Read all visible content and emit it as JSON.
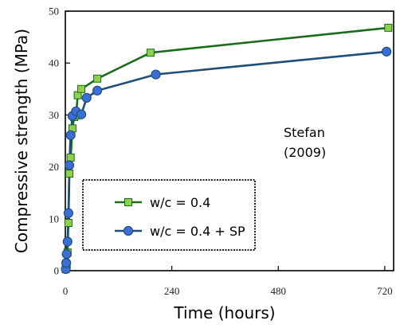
{
  "chart_data": {
    "type": "line",
    "title": "",
    "xlabel": "Time (hours)",
    "ylabel": "Compressive strength (MPa)",
    "xlim": [
      0,
      740
    ],
    "ylim": [
      0,
      50
    ],
    "xticks": [
      0,
      240,
      480,
      720
    ],
    "yticks": [
      0,
      10,
      20,
      30,
      40,
      50
    ],
    "grid": false,
    "legend_position": "lower-left",
    "annotation": [
      "Stefan",
      "(2009)"
    ],
    "series": [
      {
        "name": "w/c = 0.4",
        "color": "#1a6b1a",
        "marker": "square",
        "marker_color": "#8fd14f",
        "x": [
          1,
          3,
          5,
          7,
          9,
          12,
          16,
          20,
          24,
          28,
          36,
          72,
          192,
          728
        ],
        "y": [
          0.3,
          1.2,
          3.5,
          9.2,
          18.7,
          21.8,
          27.4,
          29.6,
          29.9,
          33.8,
          35.0,
          37.0,
          42.0,
          46.8
        ]
      },
      {
        "name": "w/c = 0.4 + SP",
        "color": "#1f4e79",
        "marker": "circle",
        "marker_color": "#3b6fd6",
        "x": [
          1,
          2,
          3,
          5,
          7,
          9,
          12,
          16,
          24,
          36,
          48,
          72,
          204,
          724
        ],
        "y": [
          0.3,
          1.5,
          3.2,
          5.6,
          11.1,
          20.3,
          26.1,
          29.8,
          30.7,
          30.1,
          33.3,
          34.7,
          37.8,
          42.2
        ]
      }
    ]
  }
}
